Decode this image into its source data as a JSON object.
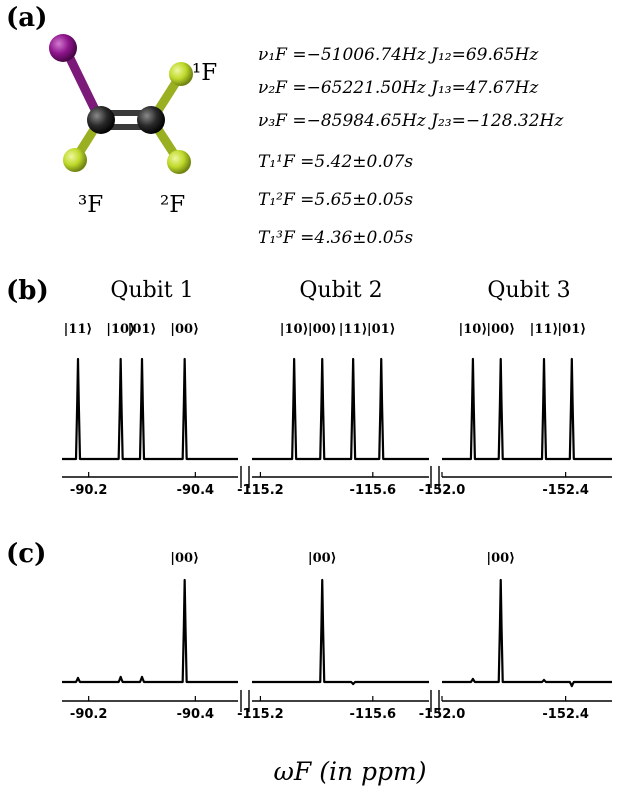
{
  "panels": {
    "a": "(a)",
    "b": "(b)",
    "c": "(c)"
  },
  "molecule": {
    "atom_labels": [
      {
        "id": "f1",
        "text": "¹F"
      },
      {
        "id": "f2",
        "text": "²F"
      },
      {
        "id": "f3",
        "text": "³F"
      }
    ],
    "colors": {
      "iodine": "#8e148c",
      "carbon": "#2a2a2a",
      "fluorine": "#bfd92a"
    }
  },
  "parameters": [
    "ν₁F =−51006.74Hz   J₁₂=69.65Hz",
    "ν₂F =−65221.50Hz   J₁₃=47.67Hz",
    "ν₃F =−85984.65Hz  J₂₃=−128.32Hz",
    "T₁¹F =5.42±0.07s",
    "T₁²F =5.65±0.05s",
    "T₁³F =4.36±0.05s"
  ],
  "qubit_titles": [
    "Qubit 1",
    "Qubit 2",
    "Qubit 3"
  ],
  "x_title": "ωF  (in ppm)",
  "chart_data": [
    {
      "type": "line",
      "name": "thermal-equilibrium-spectrum",
      "x_unit": "ppm",
      "segments": [
        {
          "xlim": [
            -90.15,
            -90.48
          ],
          "ticks": [
            -90.2,
            -90.4
          ],
          "tick_labels": [
            "-90.2",
            "-90.4"
          ],
          "peaks": [
            {
              "x": -90.18,
              "height": 1.0,
              "label": "|11⟩"
            },
            {
              "x": -90.26,
              "height": 1.0,
              "label": "|10⟩"
            },
            {
              "x": -90.3,
              "height": 1.0,
              "label": "|01⟩"
            },
            {
              "x": -90.38,
              "height": 1.0,
              "label": "|00⟩"
            }
          ]
        },
        {
          "xlim": [
            -115.17,
            -115.8
          ],
          "ticks": [
            -115.2,
            -115.6
          ],
          "tick_labels": [
            "-115.2",
            "-115.6"
          ],
          "peaks": [
            {
              "x": -115.32,
              "height": 1.0,
              "label": "|10⟩"
            },
            {
              "x": -115.42,
              "height": 1.0,
              "label": "|00⟩"
            },
            {
              "x": -115.53,
              "height": 1.0,
              "label": "|11⟩"
            },
            {
              "x": -115.63,
              "height": 1.0,
              "label": "|01⟩"
            }
          ]
        },
        {
          "xlim": [
            -152.0,
            -152.55
          ],
          "ticks": [
            -152.0,
            -152.4
          ],
          "tick_labels": [
            "-152.0",
            "-152.4"
          ],
          "peaks": [
            {
              "x": -152.1,
              "height": 1.0,
              "label": "|10⟩"
            },
            {
              "x": -152.19,
              "height": 1.0,
              "label": "|00⟩"
            },
            {
              "x": -152.33,
              "height": 1.0,
              "label": "|11⟩"
            },
            {
              "x": -152.42,
              "height": 1.0,
              "label": "|01⟩"
            }
          ]
        }
      ]
    },
    {
      "type": "line",
      "name": "pseudo-pure-state-spectrum",
      "x_unit": "ppm",
      "segments": [
        {
          "xlim": [
            -90.15,
            -90.48
          ],
          "ticks": [
            -90.2,
            -90.4
          ],
          "tick_labels": [
            "-90.2",
            "-90.4"
          ],
          "peaks": [
            {
              "x": -90.18,
              "height": 0.04
            },
            {
              "x": -90.26,
              "height": 0.05
            },
            {
              "x": -90.3,
              "height": 0.05
            },
            {
              "x": -90.38,
              "height": 1.0,
              "label": "|00⟩"
            }
          ]
        },
        {
          "xlim": [
            -115.17,
            -115.8
          ],
          "ticks": [
            -115.2,
            -115.6
          ],
          "tick_labels": [
            "-115.2",
            "-115.6"
          ],
          "peaks": [
            {
              "x": -115.42,
              "height": 1.0,
              "label": "|00⟩"
            },
            {
              "x": -115.53,
              "height": -0.02
            }
          ]
        },
        {
          "xlim": [
            -152.0,
            -152.55
          ],
          "ticks": [
            -152.0,
            -152.4
          ],
          "tick_labels": [
            "-152.0",
            "-152.4"
          ],
          "peaks": [
            {
              "x": -152.1,
              "height": 0.03
            },
            {
              "x": -152.19,
              "height": 1.0,
              "label": "|00⟩"
            },
            {
              "x": -152.33,
              "height": 0.02
            },
            {
              "x": -152.42,
              "height": -0.04
            }
          ]
        }
      ]
    }
  ]
}
